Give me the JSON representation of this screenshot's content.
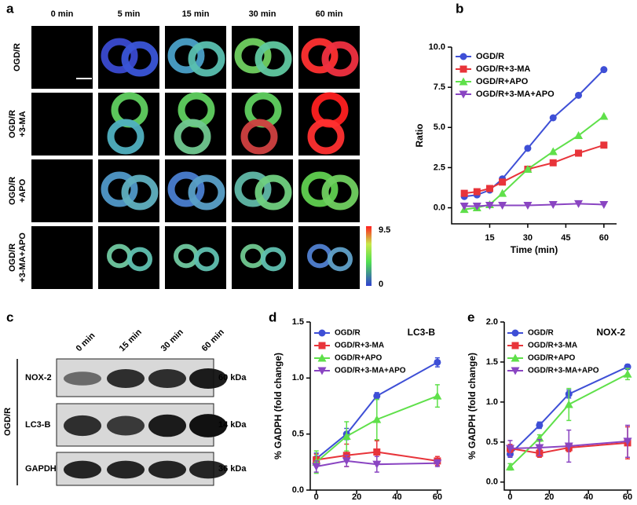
{
  "microscopy": {
    "panel_label": "a",
    "columns": [
      "0 min",
      "5 min",
      "15 min",
      "30 min",
      "60 min"
    ],
    "rows": [
      [
        "OGD/R"
      ],
      [
        "OGD/R",
        "+3-MA"
      ],
      [
        "OGD/R",
        "+APO"
      ],
      [
        "OGD/R",
        "+3-MA+APO"
      ]
    ],
    "colorbar": {
      "max": 9.5,
      "min": 0
    }
  },
  "western_blot": {
    "panel_label": "c",
    "group": "OGD/R",
    "columns": [
      "0 min",
      "15 min",
      "30 min",
      "60 min"
    ],
    "rows": [
      {
        "name": "NOX-2",
        "size": "60 kDa"
      },
      {
        "name": "LC3-B",
        "size": "14 kDa"
      },
      {
        "name": "GAPDH",
        "size": "36 kDa"
      }
    ]
  },
  "chart_data": [
    {
      "type": "line",
      "panel_label": "b",
      "xlabel": "Time (min)",
      "ylabel": "Ratio",
      "x": [
        5,
        10,
        15,
        20,
        30,
        40,
        50,
        60
      ],
      "xlim": [
        0,
        65
      ],
      "xticks": [
        15,
        30,
        45,
        60
      ],
      "ylim": [
        -1,
        10
      ],
      "yticks": [
        {
          "value": 0,
          "label": "0.0"
        },
        {
          "value": 2.5,
          "label": "2.5"
        },
        {
          "value": 5,
          "label": "5.0"
        },
        {
          "value": 7.5,
          "label": "7.5"
        },
        {
          "value": 10,
          "label": "10.0"
        }
      ],
      "legend": "upper left",
      "series": [
        {
          "name": "OGD/R",
          "color": "#3e4fd6",
          "marker": "circle",
          "values": [
            0.7,
            0.8,
            1.1,
            1.8,
            3.7,
            5.6,
            7.0,
            8.6
          ]
        },
        {
          "name": "OGD/R+3-MA",
          "color": "#e8343a",
          "marker": "square",
          "values": [
            0.9,
            1.0,
            1.2,
            1.6,
            2.4,
            2.8,
            3.4,
            3.9
          ]
        },
        {
          "name": "OGD/R+APO",
          "color": "#5fe04a",
          "marker": "triangle-up",
          "values": [
            -0.1,
            0,
            0.2,
            0.9,
            2.4,
            3.5,
            4.5,
            5.7
          ]
        },
        {
          "name": "OGD/R+3-MA+APO",
          "color": "#8a45c2",
          "marker": "triangle-down",
          "values": [
            0.1,
            0.1,
            0.15,
            0.15,
            0.15,
            0.2,
            0.25,
            0.2
          ]
        }
      ]
    },
    {
      "type": "line",
      "panel_label": "d",
      "title": "LC3-B",
      "xlabel": "Time (min)",
      "ylabel": "% GADPH (fold change)",
      "x": [
        0,
        15,
        30,
        60
      ],
      "xlim": [
        -3,
        62
      ],
      "xticks": [
        0,
        20,
        40,
        60
      ],
      "ylim": [
        0,
        1.5
      ],
      "yticks": [
        {
          "value": 0,
          "label": "0.0"
        },
        {
          "value": 0.5,
          "label": "0.5"
        },
        {
          "value": 1,
          "label": "1.0"
        },
        {
          "value": 1.5,
          "label": "1.5"
        }
      ],
      "legend": "upper left",
      "series": [
        {
          "name": "OGD/R",
          "color": "#3e4fd6",
          "marker": "circle",
          "values": [
            0.28,
            0.5,
            0.84,
            1.14
          ],
          "errors": [
            0.05,
            0.05,
            0.03,
            0.04
          ]
        },
        {
          "name": "OGD/R+3-MA",
          "color": "#e8343a",
          "marker": "square",
          "values": [
            0.27,
            0.31,
            0.34,
            0.26
          ],
          "errors": [
            0.05,
            0.1,
            0.1,
            0.04
          ]
        },
        {
          "name": "OGD/R+APO",
          "color": "#5fe04a",
          "marker": "triangle-up",
          "values": [
            0.25,
            0.48,
            0.63,
            0.84
          ],
          "errors": [
            0.1,
            0.13,
            0.18,
            0.1
          ]
        },
        {
          "name": "OGD/R+3-MA+APO",
          "color": "#8a45c2",
          "marker": "triangle-down",
          "values": [
            0.21,
            0.26,
            0.23,
            0.24
          ],
          "errors": [
            0.05,
            0.05,
            0.07,
            0.03
          ]
        }
      ]
    },
    {
      "type": "line",
      "panel_label": "e",
      "title": "NOX-2",
      "xlabel": "Time (min)",
      "ylabel": "% GADPH (fold change)",
      "x": [
        0,
        15,
        30,
        60
      ],
      "xlim": [
        -3,
        62
      ],
      "xticks": [
        0,
        20,
        40,
        60
      ],
      "ylim": [
        -0.1,
        2
      ],
      "yticks": [
        {
          "value": 0,
          "label": "0.0"
        },
        {
          "value": 0.5,
          "label": "0.5"
        },
        {
          "value": 1,
          "label": "1.0"
        },
        {
          "value": 1.5,
          "label": "1.5"
        },
        {
          "value": 2,
          "label": "2.0"
        }
      ],
      "legend": "upper left",
      "series": [
        {
          "name": "OGD/R",
          "color": "#3e4fd6",
          "marker": "circle",
          "values": [
            0.35,
            0.71,
            1.1,
            1.44
          ],
          "errors": [
            0.04,
            0.04,
            0.05,
            0.03
          ]
        },
        {
          "name": "OGD/R+3-MA",
          "color": "#e8343a",
          "marker": "square",
          "values": [
            0.42,
            0.36,
            0.43,
            0.49
          ],
          "errors": [
            0.05,
            0.05,
            0.05,
            0.2
          ]
        },
        {
          "name": "OGD/R+APO",
          "color": "#5fe04a",
          "marker": "triangle-up",
          "values": [
            0.19,
            0.55,
            0.97,
            1.35
          ],
          "errors": [
            0.04,
            0.04,
            0.2,
            0.07
          ]
        },
        {
          "name": "OGD/R+3-MA+APO",
          "color": "#8a45c2",
          "marker": "triangle-down",
          "values": [
            0.42,
            0.43,
            0.45,
            0.51
          ],
          "errors": [
            0.1,
            0.1,
            0.2,
            0.2
          ]
        }
      ]
    }
  ]
}
